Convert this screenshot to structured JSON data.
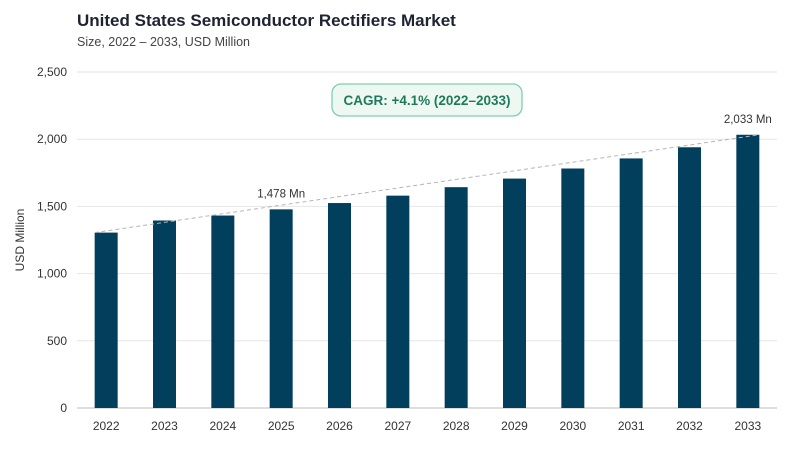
{
  "header": {
    "title": "United States Semiconductor Rectifiers Market",
    "subtitle": "Size, 2022 – 2033, USD Million"
  },
  "colors": {
    "bar": "#013f5c",
    "trend": "#b5b5b5",
    "cagr_border": "#7fcfae",
    "cagr_fill": "#eef8f3",
    "cagr_text": "#1f7a5c"
  },
  "chart_data": {
    "type": "bar",
    "categories": [
      "2022",
      "2023",
      "2024",
      "2025",
      "2026",
      "2027",
      "2028",
      "2029",
      "2030",
      "2031",
      "2032",
      "2033"
    ],
    "values": [
      1305,
      1395,
      1432,
      1478,
      1525,
      1580,
      1643,
      1707,
      1782,
      1857,
      1940,
      2033
    ],
    "ylabel": "USD Million",
    "ylim": [
      0,
      2500
    ],
    "yticks": [
      0,
      500,
      1000,
      1500,
      2000,
      2500
    ],
    "ytick_labels": [
      "0",
      "500",
      "1,000",
      "1,500",
      "2,000",
      "2,500"
    ],
    "grid": true,
    "trendline": "dashed, 2022 to 2033",
    "annotations": [
      {
        "category": "2025",
        "text": "1,478 Mn"
      },
      {
        "category": "2033",
        "text": "2,033 Mn"
      }
    ],
    "cagr_label": "CAGR: +4.1% (2022–2033)"
  }
}
